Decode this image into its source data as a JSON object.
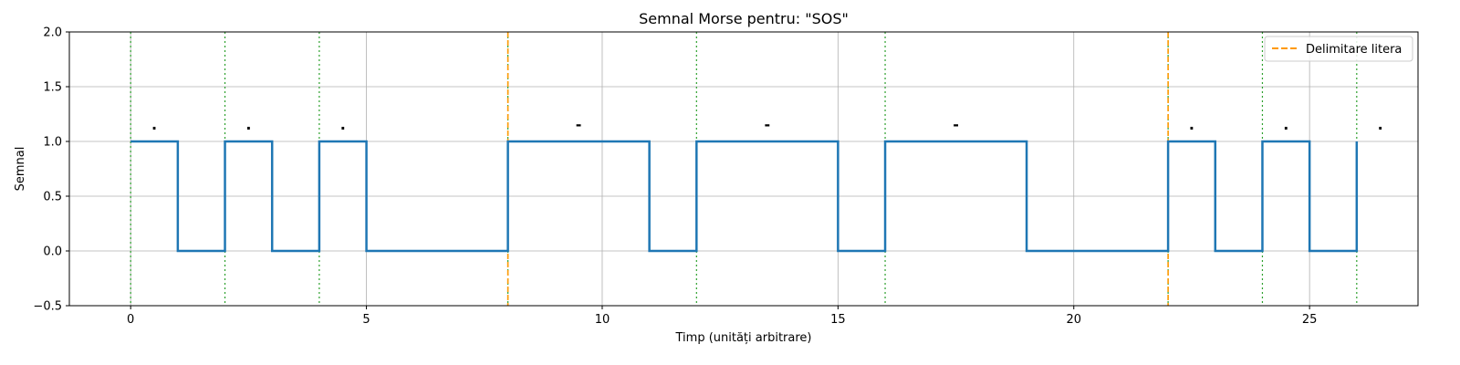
{
  "chart_data": {
    "type": "line",
    "title": "Semnal Morse pentru: \"SOS\"",
    "xlabel": "Timp (unități arbitrare)",
    "ylabel": "Semnal",
    "xlim": [
      -1.3,
      27.3
    ],
    "ylim": [
      -0.5,
      2.0
    ],
    "xticks": [
      0,
      5,
      10,
      15,
      20,
      25
    ],
    "yticks": [
      -0.5,
      0.0,
      0.5,
      1.0,
      1.5,
      2.0
    ],
    "xtick_labels": [
      "0",
      "5",
      "10",
      "15",
      "20",
      "25"
    ],
    "ytick_labels": [
      "−0.5",
      "0.0",
      "0.5",
      "1.0",
      "1.5",
      "2.0"
    ],
    "grid": true,
    "series": [
      {
        "name": "Semnal",
        "color": "#1f77b4",
        "step": "post",
        "x": [
          0,
          1,
          2,
          3,
          4,
          5,
          8,
          11,
          12,
          15,
          16,
          19,
          22,
          23,
          24,
          25,
          26
        ],
        "values": [
          1,
          0,
          1,
          0,
          1,
          0,
          1,
          0,
          1,
          0,
          1,
          0,
          1,
          0,
          1,
          0,
          1
        ]
      }
    ],
    "symbol_boundaries": {
      "color": "#2ca02c",
      "x": [
        0,
        2,
        4,
        8,
        12,
        16,
        22,
        24,
        26
      ]
    },
    "letter_boundaries": {
      "name": "Delimitare litera",
      "color": "#ff9900",
      "x": [
        8,
        22
      ]
    },
    "symbol_labels": [
      {
        "x": 0.5,
        "text": "."
      },
      {
        "x": 2.5,
        "text": "."
      },
      {
        "x": 4.5,
        "text": "."
      },
      {
        "x": 9.5,
        "text": "-"
      },
      {
        "x": 13.5,
        "text": "-"
      },
      {
        "x": 17.5,
        "text": "-"
      },
      {
        "x": 22.5,
        "text": "."
      },
      {
        "x": 24.5,
        "text": "."
      },
      {
        "x": 26.5,
        "text": "."
      }
    ],
    "legend": {
      "position": "top-right",
      "entries": [
        {
          "label": "Delimitare litera",
          "color": "#ff9900",
          "style": "dashed"
        }
      ]
    }
  }
}
